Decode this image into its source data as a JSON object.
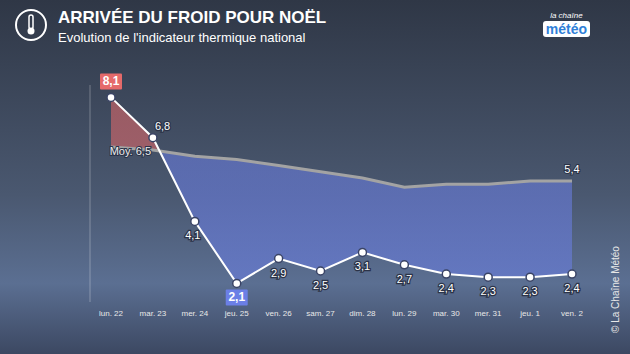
{
  "chart_data": {
    "type": "line",
    "title": "ARRIVÉE DU FROID POUR NOËL",
    "subtitle": "Evolution de l'indicateur thermique national",
    "logo": [
      "la chaîne",
      "météo"
    ],
    "copyright": "© La Chaîne Météo",
    "categories": [
      "lun. 22",
      "mar. 23",
      "mer. 24",
      "jeu. 25",
      "ven. 26",
      "sam. 27",
      "dim. 28",
      "lun. 29",
      "mar. 30",
      "mer. 31",
      "jeu. 1",
      "ven. 2"
    ],
    "series": [
      {
        "color": "#ffffff",
        "marker": "circle",
        "values": [
          8.1,
          6.8,
          4.1,
          2.1,
          2.9,
          2.5,
          3.1,
          2.7,
          2.4,
          2.3,
          2.3,
          2.4
        ],
        "value_labels": [
          "8,1",
          "6,8",
          "4,1",
          "2,1",
          "2,9",
          "2,5",
          "3,1",
          "2,7",
          "2,4",
          "2,3",
          "2,3",
          "2,4"
        ]
      },
      {
        "color": "#a3a3a3",
        "values": [
          6.5,
          6.4,
          6.2,
          6.1,
          5.9,
          5.7,
          5.5,
          5.2,
          5.3,
          5.3,
          5.4,
          5.4
        ],
        "value_labels": [
          null,
          null,
          null,
          null,
          null,
          null,
          null,
          null,
          null,
          null,
          null,
          "5,4"
        ]
      }
    ],
    "colors": [
      "#e56a6a",
      "#6b7fe6"
    ],
    "annotations": [
      {
        "text": "Moy. 6,5",
        "x": "lun. 22",
        "y": 6.5
      }
    ],
    "ylim": [
      1.5,
      8.5
    ],
    "data_labels": true,
    "tick_labels": "x",
    "grid": false
  }
}
